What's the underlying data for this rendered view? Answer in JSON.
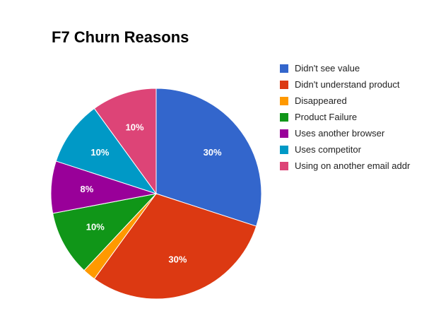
{
  "chart_data": {
    "type": "pie",
    "title": "F7 Churn Reasons",
    "legend_position": "right",
    "slices": [
      {
        "name": "Didn't see value",
        "value": 30,
        "label": "30%",
        "color": "#3366cc"
      },
      {
        "name": "Didn't understand product",
        "value": 30,
        "label": "30%",
        "color": "#dc3912"
      },
      {
        "name": "Disappeared",
        "value": 2,
        "label": "",
        "color": "#ff9900"
      },
      {
        "name": "Product Failure",
        "value": 10,
        "label": "10%",
        "color": "#109618"
      },
      {
        "name": "Uses another browser",
        "value": 8,
        "label": "8%",
        "color": "#990099"
      },
      {
        "name": "Uses competitor",
        "value": 10,
        "label": "10%",
        "color": "#0099c6"
      },
      {
        "name": "Using on another email addr",
        "value": 10,
        "label": "10%",
        "color": "#dd4477"
      }
    ]
  }
}
